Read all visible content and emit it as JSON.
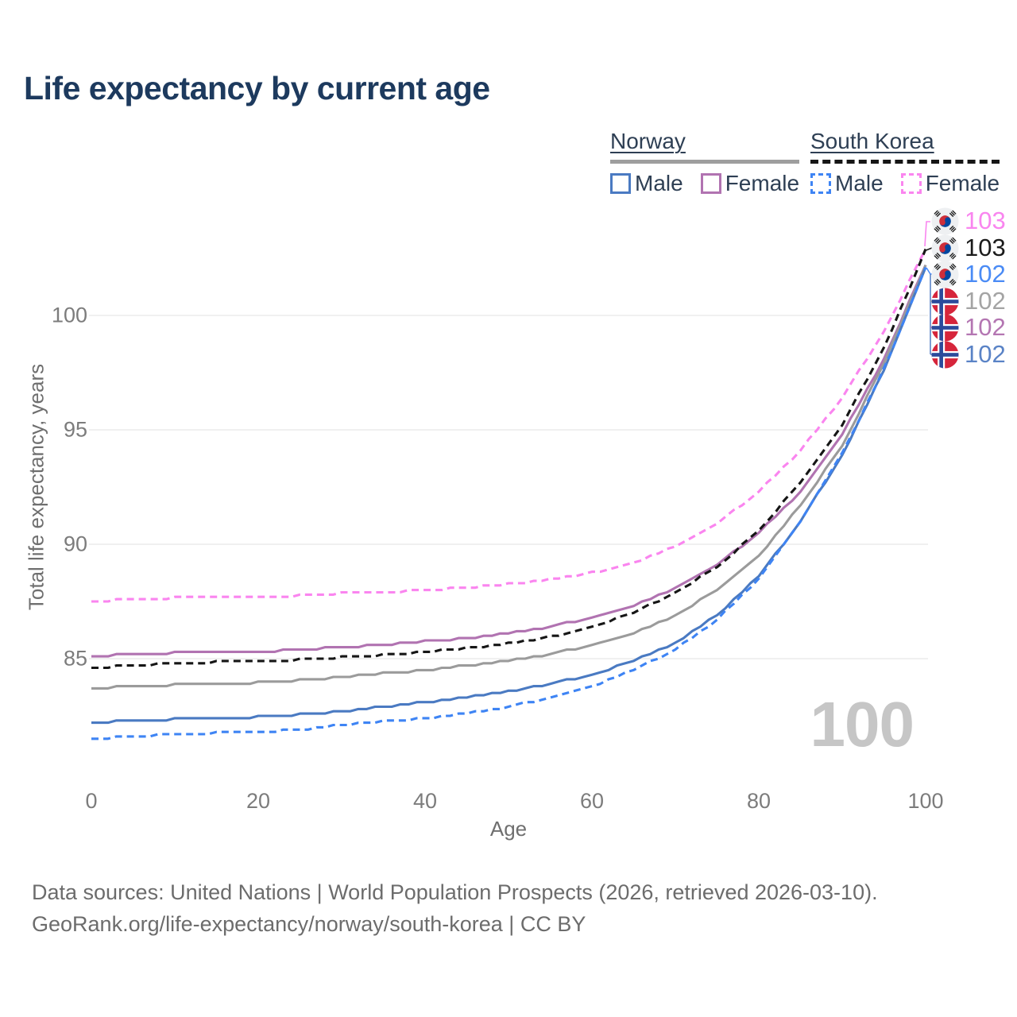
{
  "title": "Life expectancy by current age",
  "legend": {
    "groups": [
      {
        "label": "Norway",
        "line_style": "solid",
        "rule_color": "#9e9e9e",
        "items": [
          {
            "label": "Male",
            "color": "#4a7ac2"
          },
          {
            "label": "Female",
            "color": "#b173b1"
          }
        ]
      },
      {
        "label": "South Korea",
        "line_style": "dashed",
        "rule_color": "#161616",
        "items": [
          {
            "label": "Male",
            "color": "#3e84f4"
          },
          {
            "label": "Female",
            "color": "#fa85ef"
          }
        ]
      }
    ]
  },
  "axes": {
    "y_title": "Total life expectancy, years",
    "x_title": "Age",
    "y_ticks": [
      "100",
      "95",
      "90",
      "85"
    ],
    "x_ticks": [
      "0",
      "20",
      "40",
      "60",
      "80",
      "100"
    ]
  },
  "watermark": "100",
  "footer": {
    "line1": "Data sources: United Nations | World Population Prospects (2026, retrieved 2026-03-10).",
    "line2": "GeoRank.org/life-expectancy/norway/south-korea | CC BY"
  },
  "chart_data": {
    "type": "line",
    "title": "Life expectancy by current age",
    "xlabel": "Age",
    "ylabel": "Total life expectancy, years",
    "xlim": [
      0,
      100
    ],
    "ylim": [
      80.5,
      103.5
    ],
    "grid": "horizontal",
    "x_tick_values": [
      0,
      20,
      40,
      60,
      80,
      100
    ],
    "y_gridline_values": [
      85,
      90,
      95,
      100
    ],
    "ages": [
      0,
      5,
      10,
      15,
      20,
      25,
      30,
      35,
      40,
      45,
      50,
      55,
      60,
      65,
      70,
      75,
      80,
      85,
      90,
      95,
      100
    ],
    "series": [
      {
        "name": "Norway Female",
        "country": "Norway",
        "sex": "Female",
        "color": "#b173b1",
        "dash": false,
        "values": [
          85.1,
          85.2,
          85.25,
          85.3,
          85.3,
          85.4,
          85.5,
          85.6,
          85.75,
          85.9,
          86.1,
          86.4,
          86.8,
          87.3,
          88.1,
          89.1,
          90.5,
          92.3,
          94.8,
          98.1,
          102.2
        ]
      },
      {
        "name": "Norway Combined",
        "country": "Norway",
        "sex": "Both",
        "color": "#9b9b9b",
        "dash": false,
        "values": [
          83.7,
          83.8,
          83.85,
          83.9,
          83.95,
          84.05,
          84.2,
          84.35,
          84.5,
          84.7,
          84.9,
          85.2,
          85.6,
          86.1,
          86.9,
          88.0,
          89.5,
          91.7,
          94.3,
          97.9,
          102.15
        ]
      },
      {
        "name": "Norway Male",
        "country": "Norway",
        "sex": "Male",
        "color": "#4a7ac2",
        "dash": false,
        "values": [
          82.2,
          82.3,
          82.35,
          82.4,
          82.45,
          82.55,
          82.7,
          82.9,
          83.1,
          83.3,
          83.55,
          83.9,
          84.3,
          84.9,
          85.7,
          86.9,
          88.6,
          91.0,
          93.9,
          97.6,
          102.1
        ]
      },
      {
        "name": "South Korea Female",
        "country": "South Korea",
        "sex": "Female",
        "color": "#fa85ef",
        "dash": true,
        "values": [
          87.5,
          87.6,
          87.65,
          87.7,
          87.7,
          87.75,
          87.85,
          87.9,
          88.0,
          88.1,
          88.25,
          88.45,
          88.75,
          89.2,
          89.9,
          90.9,
          92.3,
          94.1,
          96.4,
          99.3,
          102.9
        ]
      },
      {
        "name": "South Korea Combined",
        "country": "South Korea",
        "sex": "Both",
        "color": "#161616",
        "dash": true,
        "values": [
          84.6,
          84.7,
          84.8,
          84.85,
          84.9,
          84.95,
          85.05,
          85.15,
          85.3,
          85.45,
          85.65,
          85.95,
          86.4,
          87.0,
          87.9,
          89.0,
          90.6,
          92.7,
          95.2,
          98.6,
          102.85
        ]
      },
      {
        "name": "South Korea Male",
        "country": "South Korea",
        "sex": "Male",
        "color": "#3e84f4",
        "dash": true,
        "values": [
          81.5,
          81.6,
          81.7,
          81.75,
          81.8,
          81.9,
          82.1,
          82.25,
          82.4,
          82.6,
          82.9,
          83.3,
          83.8,
          84.5,
          85.4,
          86.7,
          88.5,
          91.0,
          93.95,
          97.65,
          102.1
        ]
      }
    ],
    "end_labels": [
      {
        "value": "103",
        "country": "South Korea",
        "series": "South Korea Female",
        "color": "#f985ef"
      },
      {
        "value": "103",
        "country": "South Korea",
        "series": "South Korea Combined",
        "color": "#1b1b1b"
      },
      {
        "value": "102",
        "country": "South Korea",
        "series": "South Korea Male",
        "color": "#4a8bf5"
      },
      {
        "value": "102",
        "country": "Norway",
        "series": "Norway Combined",
        "color": "#a4a4a4"
      },
      {
        "value": "102",
        "country": "Norway",
        "series": "Norway Female",
        "color": "#b476b2"
      },
      {
        "value": "102",
        "country": "Norway",
        "series": "Norway Male",
        "color": "#5a83c6"
      }
    ]
  }
}
